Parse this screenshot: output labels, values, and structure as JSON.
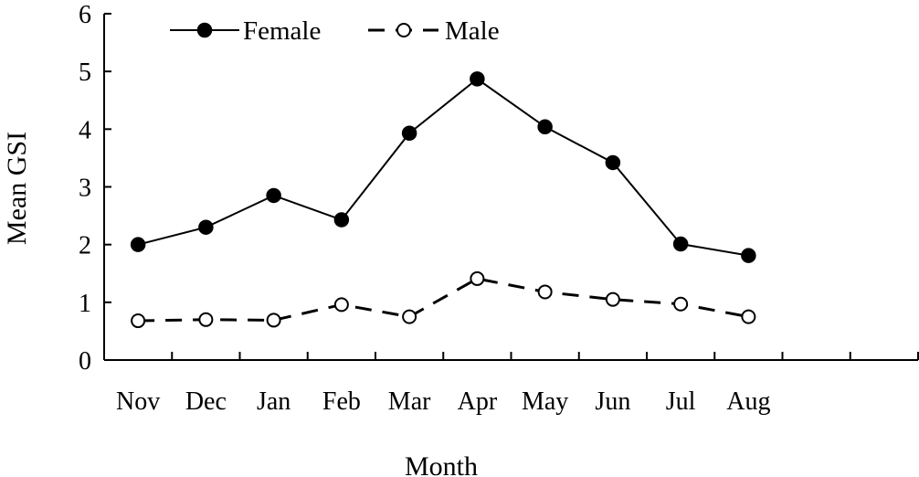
{
  "chart_data": {
    "type": "line",
    "title": "",
    "xlabel": "Month",
    "ylabel": "Mean GSI",
    "categories": [
      "Nov",
      "Dec",
      "Jan",
      "Feb",
      "Mar",
      "Apr",
      "May",
      "Jun",
      "Jul",
      "Aug"
    ],
    "x_slots": 12,
    "ylim": [
      0,
      6
    ],
    "yticks": [
      "0",
      "1",
      "2",
      "3",
      "4",
      "5",
      "6"
    ],
    "grid": false,
    "legend_position": "top-left",
    "series": [
      {
        "name": "Female",
        "style": "solid",
        "marker": "filled-circle",
        "values": [
          2.0,
          2.3,
          2.85,
          2.43,
          3.93,
          4.87,
          4.04,
          3.42,
          2.01,
          1.81
        ]
      },
      {
        "name": "Male",
        "style": "dashed",
        "marker": "open-circle",
        "values": [
          0.68,
          0.7,
          0.69,
          0.96,
          0.75,
          1.41,
          1.18,
          1.05,
          0.97,
          0.75
        ]
      }
    ]
  }
}
